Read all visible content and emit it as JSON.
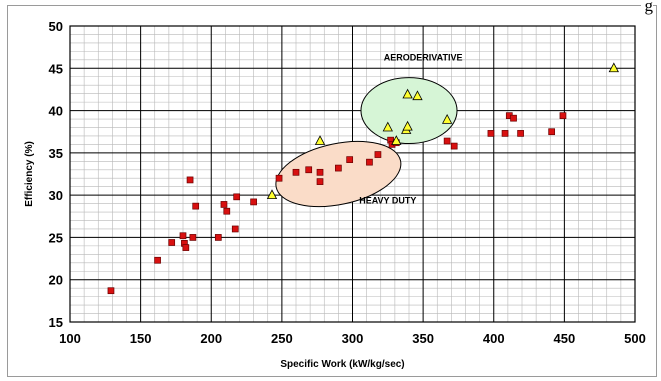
{
  "header": {
    "top_right_text": "g"
  },
  "chart_data": {
    "type": "scatter",
    "title": "",
    "xlabel": "Specific Work (kW/kg/sec)",
    "ylabel": "Efficiency (%)",
    "xlim": [
      100,
      500
    ],
    "ylim": [
      15,
      50
    ],
    "x_ticks": [
      "100",
      "150",
      "200",
      "250",
      "300",
      "350",
      "400",
      "450",
      "500"
    ],
    "y_ticks": [
      "15",
      "20",
      "25",
      "30",
      "35",
      "40",
      "45",
      "50"
    ],
    "grid": true,
    "legend": "none",
    "annotations": [
      {
        "text": "AERODERIVATIVE",
        "x": 350,
        "y": 45.9
      },
      {
        "text": "HEAVY DUTY",
        "x": 325,
        "y": 29.0
      }
    ],
    "regions": [
      {
        "name": "aeroderivative",
        "cx": 340,
        "cy": 40.0,
        "rx": 34,
        "ry": 3.9,
        "fill": "#d6f5d6"
      },
      {
        "name": "heavy-duty",
        "cx": 290,
        "cy": 32.5,
        "rx": 45,
        "ry": 3.6,
        "fill": "#fadcc8",
        "rotate": -12
      }
    ],
    "series": [
      {
        "marker": "square",
        "color": "#d81010",
        "points": [
          [
            129,
            18.7
          ],
          [
            162,
            22.3
          ],
          [
            172,
            24.4
          ],
          [
            180,
            25.2
          ],
          [
            181,
            24.3
          ],
          [
            182,
            23.8
          ],
          [
            185,
            31.8
          ],
          [
            187,
            25.0
          ],
          [
            189,
            28.7
          ],
          [
            205,
            25.0
          ],
          [
            209,
            28.9
          ],
          [
            211,
            28.1
          ],
          [
            217,
            26.0
          ],
          [
            218,
            29.8
          ],
          [
            230,
            29.2
          ],
          [
            248,
            32.0
          ],
          [
            260,
            32.7
          ],
          [
            269,
            33.0
          ],
          [
            277,
            32.7
          ],
          [
            277,
            31.6
          ],
          [
            290,
            33.2
          ],
          [
            298,
            34.2
          ],
          [
            312,
            33.9
          ],
          [
            318,
            34.8
          ],
          [
            327,
            36.5
          ],
          [
            328,
            36.0
          ],
          [
            331,
            36.2
          ],
          [
            367,
            36.4
          ],
          [
            372,
            35.8
          ],
          [
            398,
            37.3
          ],
          [
            408,
            37.3
          ],
          [
            411,
            39.4
          ],
          [
            414,
            39.1
          ],
          [
            419,
            37.3
          ],
          [
            441,
            37.5
          ],
          [
            449,
            39.4
          ]
        ]
      },
      {
        "marker": "triangle",
        "color": "#ffff30",
        "points": [
          [
            243,
            30.0
          ],
          [
            277,
            36.4
          ],
          [
            325,
            38.0
          ],
          [
            331,
            36.4
          ],
          [
            338,
            37.7
          ],
          [
            339,
            38.1
          ],
          [
            339,
            41.9
          ],
          [
            346,
            41.7
          ],
          [
            367,
            38.9
          ],
          [
            485,
            45.0
          ]
        ]
      }
    ]
  }
}
